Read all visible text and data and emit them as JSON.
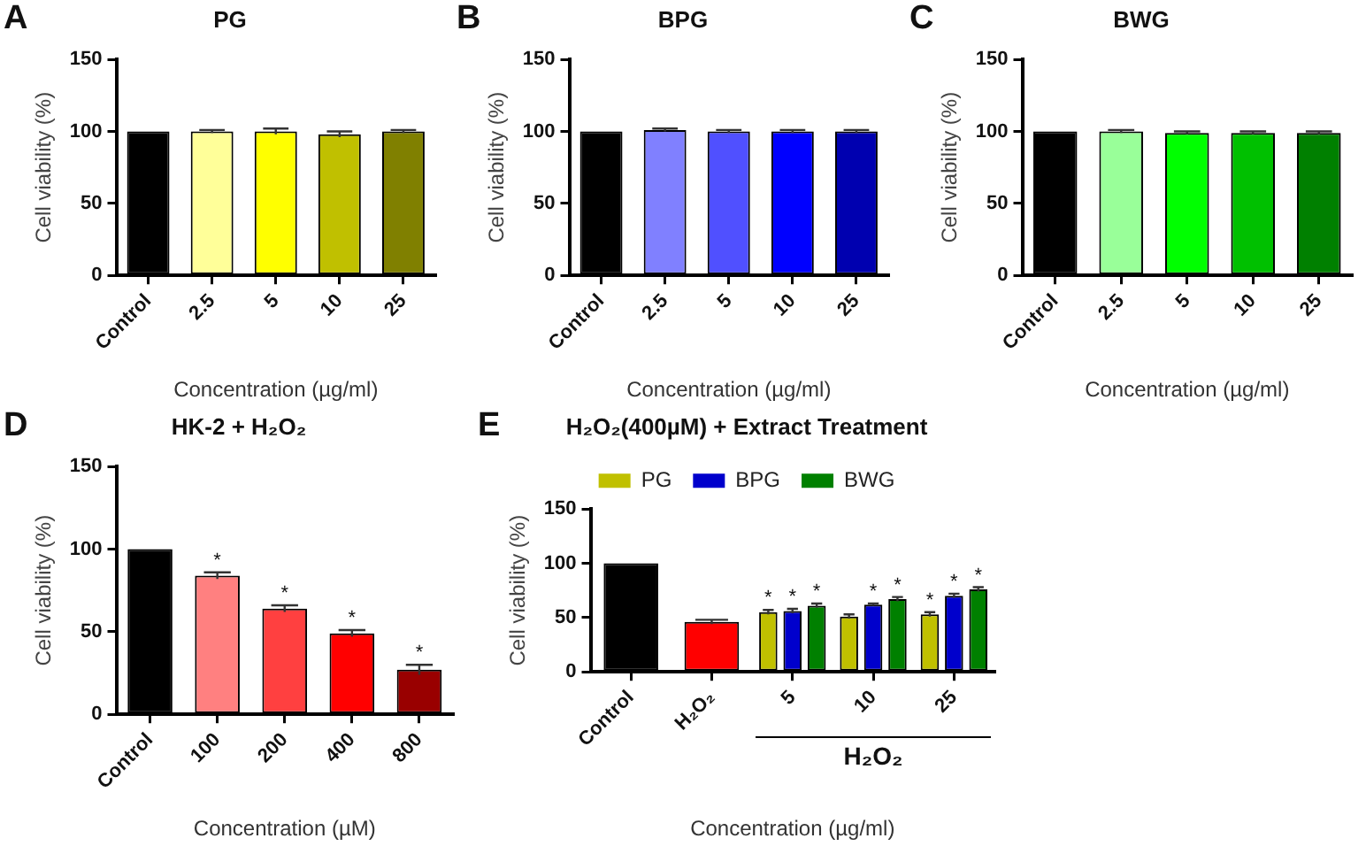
{
  "chart_data": [
    {
      "type": "bar",
      "title": "PG",
      "xlabel": "Concentration (µg/ml)",
      "ylabel": "Cell viability (%)",
      "annotations": [
        "A"
      ],
      "grid": false,
      "categories": [
        "Control",
        "2.5",
        "5",
        "10",
        "25"
      ],
      "values": [
        100,
        100,
        100,
        98,
        100
      ],
      "errors": [
        null,
        1,
        2,
        2,
        1
      ],
      "colors": [
        "#000000",
        "#ffff99",
        "#ffff00",
        "#c0c000",
        "#808000"
      ],
      "ylim": [
        0,
        150
      ],
      "yticks": [
        0,
        50,
        100,
        150
      ]
    },
    {
      "type": "bar",
      "title": "BPG",
      "xlabel": "Concentration (µg/ml)",
      "ylabel": "Cell viability (%)",
      "annotations": [
        "B"
      ],
      "grid": false,
      "categories": [
        "Control",
        "2.5",
        "5",
        "10",
        "25"
      ],
      "values": [
        100,
        101,
        100,
        100,
        100
      ],
      "errors": [
        null,
        1,
        1,
        1,
        1
      ],
      "colors": [
        "#000000",
        "#8080ff",
        "#5050ff",
        "#0000ff",
        "#0000b0"
      ],
      "ylim": [
        0,
        150
      ],
      "yticks": [
        0,
        50,
        100,
        150
      ]
    },
    {
      "type": "bar",
      "title": "BWG",
      "xlabel": "Concentration (µg/ml)",
      "ylabel": "Cell viability (%)",
      "annotations": [
        "C"
      ],
      "grid": false,
      "categories": [
        "Control",
        "2.5",
        "5",
        "10",
        "25"
      ],
      "values": [
        100,
        100,
        99,
        99,
        99
      ],
      "errors": [
        null,
        1,
        1,
        1,
        1
      ],
      "colors": [
        "#000000",
        "#99ff99",
        "#00ff00",
        "#00c000",
        "#008000"
      ],
      "ylim": [
        0,
        150
      ],
      "yticks": [
        0,
        50,
        100,
        150
      ]
    },
    {
      "type": "bar",
      "title": "HK-2 + H₂O₂",
      "xlabel": "Concentration (µM)",
      "ylabel": "Cell viability (%)",
      "annotations": [
        "D"
      ],
      "grid": false,
      "categories": [
        "Control",
        "100",
        "200",
        "400",
        "800"
      ],
      "values": [
        100,
        84,
        64,
        49,
        27
      ],
      "errors": [
        null,
        2,
        2,
        2,
        3
      ],
      "value_labels": [
        null,
        "*",
        "*",
        "*",
        "*"
      ],
      "colors": [
        "#000000",
        "#ff8080",
        "#ff4040",
        "#ff0000",
        "#990000"
      ],
      "ylim": [
        0,
        150
      ],
      "yticks": [
        0,
        50,
        100,
        150
      ]
    },
    {
      "type": "bar",
      "title": "H₂O₂(400µM) + Extract Treatment",
      "xlabel": "Concentration (µg/ml)",
      "ylabel": "Cell viability (%)",
      "annotations": [
        "E",
        "H₂O₂"
      ],
      "grid": false,
      "legend": "top",
      "categories": [
        "Control",
        "H₂O₂",
        "5",
        "10",
        "25"
      ],
      "series": [
        {
          "color": "#000000",
          "values": [
            100,
            null,
            null,
            null,
            null
          ],
          "errors": [
            null,
            null,
            null,
            null,
            null
          ]
        },
        {
          "color": "#ff0000",
          "values": [
            null,
            46,
            null,
            null,
            null
          ],
          "errors": [
            null,
            2,
            null,
            null,
            null
          ]
        },
        {
          "name": "PG",
          "color": "#c0c000",
          "values": [
            null,
            null,
            55,
            51,
            53
          ],
          "errors": [
            null,
            null,
            2,
            2,
            2
          ],
          "value_labels": [
            null,
            null,
            "*",
            null,
            "*"
          ]
        },
        {
          "name": "BPG",
          "color": "#0000cc",
          "values": [
            null,
            null,
            56,
            62,
            70
          ],
          "errors": [
            null,
            null,
            2,
            1,
            2
          ],
          "value_labels": [
            null,
            null,
            "*",
            "*",
            "*"
          ]
        },
        {
          "name": "BWG",
          "color": "#008000",
          "values": [
            null,
            null,
            61,
            67,
            76
          ],
          "errors": [
            null,
            null,
            2,
            2,
            2
          ],
          "value_labels": [
            null,
            null,
            "*",
            "*",
            "*"
          ]
        }
      ],
      "ylim": [
        0,
        150
      ],
      "yticks": [
        0,
        50,
        100,
        150
      ]
    }
  ]
}
